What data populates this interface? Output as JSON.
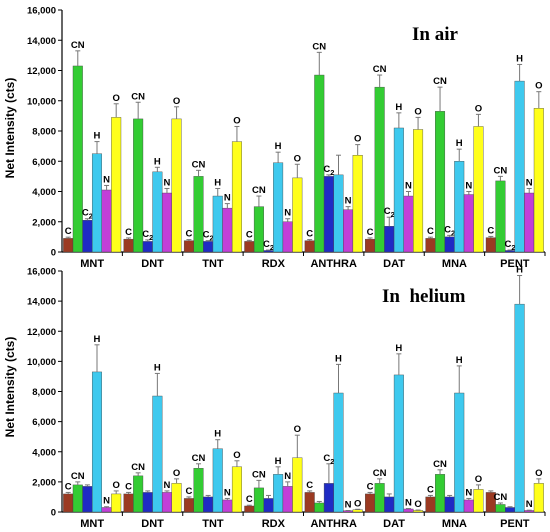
{
  "chart_data": [
    {
      "type": "bar",
      "title": "In air",
      "ylabel": "Net Intensity (cts)",
      "ylim": [
        0,
        16000
      ],
      "yticks": [
        "0",
        "2,000",
        "4,000",
        "6,000",
        "8,000",
        "10,000",
        "12,000",
        "14,000",
        "16,000"
      ],
      "categories": [
        "MNT",
        "DNT",
        "TNT",
        "RDX",
        "ANTHRA",
        "DAT",
        "MNA",
        "PENT"
      ],
      "series": [
        {
          "name": "C",
          "color": "#9b3a22",
          "values": [
            900,
            850,
            750,
            700,
            750,
            850,
            900,
            950
          ],
          "errors": [
            80,
            80,
            70,
            70,
            70,
            80,
            80,
            80
          ]
        },
        {
          "name": "CN",
          "color": "#33cc33",
          "values": [
            12300,
            8800,
            5000,
            3000,
            11700,
            10900,
            9300,
            4700
          ],
          "errors": [
            1000,
            1100,
            400,
            700,
            1500,
            800,
            1600,
            300
          ]
        },
        {
          "name": "C2",
          "color": "#1f2bc4",
          "values": [
            2100,
            700,
            700,
            100,
            5000,
            1700,
            1000,
            100
          ],
          "errors": [
            100,
            100,
            50,
            30,
            100,
            600,
            100,
            30
          ]
        },
        {
          "name": "H",
          "color": "#3ec9ee",
          "values": [
            6500,
            5300,
            3700,
            5900,
            5100,
            8200,
            6000,
            11300
          ],
          "errors": [
            800,
            300,
            500,
            700,
            1300,
            1000,
            800,
            1100
          ]
        },
        {
          "name": "N",
          "color": "#c23fd8",
          "values": [
            4100,
            3900,
            2900,
            2000,
            2800,
            3700,
            3800,
            3900
          ],
          "errors": [
            300,
            300,
            300,
            200,
            200,
            300,
            200,
            300
          ]
        },
        {
          "name": "O",
          "color": "#ffff1a",
          "values": [
            8900,
            8800,
            7300,
            4900,
            6400,
            8100,
            8300,
            9500
          ],
          "errors": [
            900,
            800,
            1000,
            900,
            700,
            800,
            800,
            1100
          ]
        }
      ],
      "bar_labels": {
        "MNT": {
          "C": "C",
          "CN": "CN",
          "C2": "C2",
          "H": "H",
          "N": "N",
          "O": "O"
        },
        "DNT": {
          "C": "C",
          "CN": "CN",
          "C2": "C2",
          "H": "H",
          "N": "N",
          "O": "O"
        },
        "TNT": {
          "C": "C",
          "CN": "CN",
          "C2": "C2",
          "H": "H",
          "N": "N",
          "O": "O"
        },
        "RDX": {
          "C": "C",
          "CN": "CN",
          "C2": "C2",
          "H": "H",
          "N": "N",
          "O": "O"
        },
        "ANTHRA": {
          "C": "C",
          "CN": "CN",
          "C2": "C2",
          "H": "",
          "N": "N",
          "O": "O"
        },
        "DAT": {
          "C": "C",
          "CN": "CN",
          "C2": "C2",
          "H": "H",
          "N": "N",
          "O": "O"
        },
        "MNA": {
          "C": "C",
          "CN": "CN",
          "C2": "C2",
          "H": "H",
          "N": "N",
          "O": "O"
        },
        "PENT": {
          "C": "C",
          "CN": "CN",
          "C2": "C2",
          "H": "H",
          "N": "N",
          "O": "O"
        }
      }
    },
    {
      "type": "bar",
      "title": "In  helium",
      "ylabel": "Net Intensity (cts)",
      "ylim": [
        0,
        16000
      ],
      "yticks": [
        "0",
        "2,000",
        "4,000",
        "6,000",
        "8,000",
        "10,000",
        "12,000",
        "14,000",
        "16,000"
      ],
      "categories": [
        "MNT",
        "DNT",
        "TNT",
        "RDX",
        "ANTHRA",
        "DAT",
        "MNA",
        "PENT"
      ],
      "series": [
        {
          "name": "C",
          "color": "#9b3a22",
          "values": [
            1200,
            1200,
            900,
            400,
            1300,
            1200,
            1000,
            1300
          ],
          "errors": [
            100,
            100,
            100,
            50,
            100,
            100,
            100,
            100
          ]
        },
        {
          "name": "CN",
          "color": "#33cc33",
          "values": [
            1800,
            2400,
            2900,
            1600,
            600,
            1900,
            2500,
            500
          ],
          "errors": [
            200,
            200,
            300,
            500,
            100,
            300,
            300,
            100
          ]
        },
        {
          "name": "C2",
          "color": "#1f2bc4",
          "values": [
            1700,
            1300,
            1000,
            900,
            1900,
            1000,
            1000,
            300
          ],
          "errors": [
            100,
            100,
            100,
            200,
            1300,
            200,
            100,
            50
          ]
        },
        {
          "name": "H",
          "color": "#3ec9ee",
          "values": [
            9300,
            7700,
            4200,
            2500,
            7900,
            9100,
            7900,
            13800
          ],
          "errors": [
            1800,
            1500,
            600,
            500,
            1900,
            1400,
            1800,
            1900
          ]
        },
        {
          "name": "N",
          "color": "#c23fd8",
          "values": [
            300,
            1300,
            800,
            1700,
            80,
            200,
            800,
            100
          ],
          "errors": [
            50,
            100,
            100,
            300,
            20,
            30,
            100,
            20
          ]
        },
        {
          "name": "O",
          "color": "#ffff1a",
          "values": [
            1200,
            1900,
            3000,
            3600,
            150,
            100,
            1500,
            1900
          ],
          "errors": [
            200,
            300,
            400,
            1500,
            30,
            30,
            300,
            300
          ]
        }
      ],
      "bar_labels": {
        "MNT": {
          "C": "C",
          "CN": "CN",
          "C2": "",
          "H": "H",
          "N": "N",
          "O": "O"
        },
        "DNT": {
          "C": "C",
          "CN": "CN",
          "C2": "",
          "H": "H",
          "N": "N",
          "O": "O"
        },
        "TNT": {
          "C": "C",
          "CN": "CN",
          "C2": "",
          "H": "H",
          "N": "N",
          "O": "O"
        },
        "RDX": {
          "C": "C",
          "CN": "CN",
          "C2": "",
          "H": "H",
          "N": "N",
          "O": "O"
        },
        "ANTHRA": {
          "C": "C",
          "CN": "",
          "C2": "C2",
          "H": "H",
          "N": "N",
          "O": "O"
        },
        "DAT": {
          "C": "C",
          "CN": "CN",
          "C2": "",
          "H": "H",
          "N": "N",
          "O": "O"
        },
        "MNA": {
          "C": "C",
          "CN": "CN",
          "C2": "",
          "H": "H",
          "N": "N",
          "O": "O"
        },
        "PENT": {
          "C": "",
          "CN": "CN",
          "C2": "",
          "H": "H",
          "N": "N",
          "O": "O"
        }
      }
    }
  ]
}
